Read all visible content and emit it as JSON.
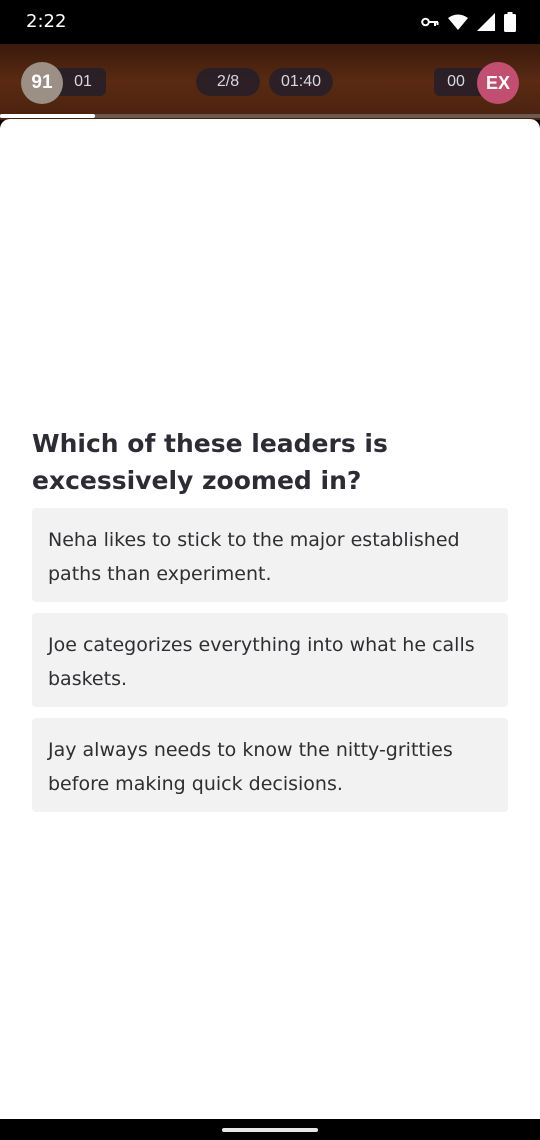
{
  "status_bar": {
    "time": "2:22",
    "icons": [
      "key-icon",
      "wifi-icon",
      "signal-icon",
      "battery-icon"
    ]
  },
  "top_bar": {
    "avatar_value": "91",
    "left_score": "01",
    "question_progress": "2/8",
    "timer": "01:40",
    "right_score": "00",
    "exit_label": "EX",
    "progress_fraction": 0.175,
    "colors": {
      "avatar": "#9c8f86",
      "exit": "#c24f72"
    }
  },
  "quiz": {
    "question": "Which of these leaders is excessively zoomed in?",
    "options": [
      "Neha likes to stick to the major established paths than experiment.",
      "Joe categorizes everything into what he calls baskets.",
      "Jay always needs to know the nitty-gritties before making quick decisions."
    ]
  }
}
